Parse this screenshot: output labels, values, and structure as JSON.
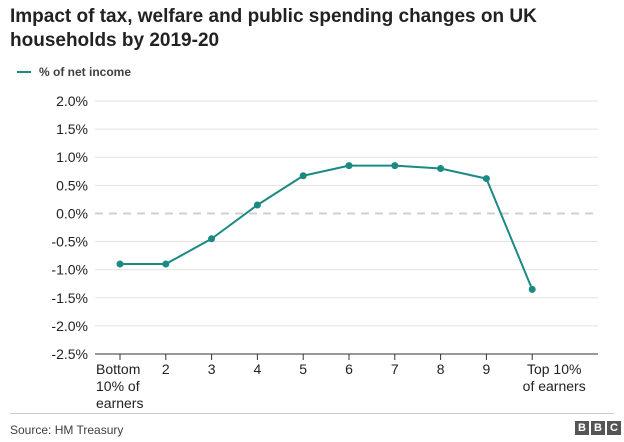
{
  "title": "Impact of tax, welfare and public spending changes on UK households by 2019-20",
  "legend": {
    "label": "% of net income"
  },
  "source": "Source: HM Treasury",
  "logo": {
    "letters": [
      "B",
      "B",
      "C"
    ]
  },
  "colors": {
    "line": "#1a8a82",
    "grid": "#e2e2e2",
    "zero": "#d0d0d0",
    "axis": "#333333"
  },
  "chart_data": {
    "type": "line",
    "title": "Impact of tax, welfare and public spending changes on UK households by 2019-20",
    "xlabel": "",
    "ylabel": "",
    "ylim": [
      -2.5,
      2.0
    ],
    "y_ticks": [
      2.0,
      1.5,
      1.0,
      0.5,
      0.0,
      -0.5,
      -1.0,
      -1.5,
      -2.0,
      -2.5
    ],
    "y_tick_labels": [
      "2.0%",
      "1.5%",
      "1.0%",
      "0.5%",
      "0.0%",
      "-0.5%",
      "-1.0%",
      "-1.5%",
      "-2.0%",
      "-2.5%"
    ],
    "categories": [
      [
        "Bottom",
        "10% of",
        "earners"
      ],
      [
        "2"
      ],
      [
        "3"
      ],
      [
        "4"
      ],
      [
        "5"
      ],
      [
        "6"
      ],
      [
        "7"
      ],
      [
        "8"
      ],
      [
        "9"
      ],
      [
        "Top 10%",
        "of earners"
      ]
    ],
    "series": [
      {
        "name": "% of net income",
        "values": [
          -0.9,
          -0.9,
          -0.45,
          0.15,
          0.67,
          0.85,
          0.85,
          0.8,
          0.62,
          -1.35
        ]
      }
    ],
    "grid": true,
    "legend_position": "top-left"
  }
}
